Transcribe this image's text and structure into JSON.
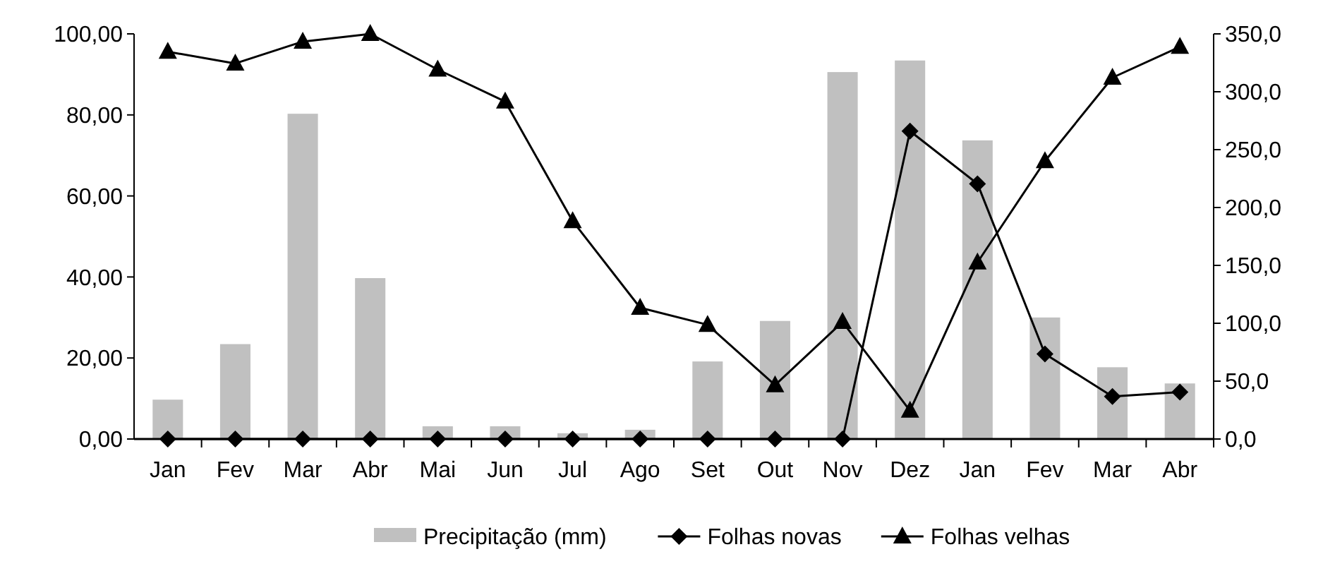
{
  "chart_data": {
    "type": "bar",
    "categories": [
      "Jan",
      "Fev",
      "Mar",
      "Abr",
      "Mai",
      "Jun",
      "Jul",
      "Ago",
      "Set",
      "Out",
      "Nov",
      "Dez",
      "Jan",
      "Fev",
      "Mar",
      "Abr"
    ],
    "series": [
      {
        "name": "Precipitação (mm)",
        "axis": "y2",
        "color": "#c0c0c0",
        "values": [
          34,
          82,
          281,
          139,
          11,
          11,
          5,
          8,
          67,
          102,
          317,
          327,
          258,
          105,
          62,
          48
        ]
      },
      {
        "name": "Folhas novas",
        "type": "line",
        "color": "#000000",
        "marker": "diamond",
        "values": [
          0,
          0,
          0,
          0,
          0,
          0,
          0,
          0,
          0,
          0,
          0,
          76,
          63,
          21,
          10.5,
          11.6
        ]
      },
      {
        "name": "Folhas velhas",
        "type": "line",
        "color": "#000000",
        "marker": "triangle",
        "values": [
          95.6,
          92.7,
          98.1,
          100,
          91.2,
          83.3,
          53.8,
          32.4,
          28.2,
          13.3,
          28.9,
          7,
          43.6,
          68.6,
          89.2,
          96.8
        ]
      }
    ],
    "ylim": [
      0,
      100
    ],
    "yticks": [
      {
        "value": 0,
        "label": "0,00"
      },
      {
        "value": 20,
        "label": "20,00"
      },
      {
        "value": 40,
        "label": "40,00"
      },
      {
        "value": 60,
        "label": "60,00"
      },
      {
        "value": 80,
        "label": "80,00"
      },
      {
        "value": 100,
        "label": "100,00"
      }
    ],
    "y2lim": [
      0,
      350
    ],
    "y2ticks": [
      {
        "value": 0,
        "label": "0,0"
      },
      {
        "value": 50,
        "label": "50,0"
      },
      {
        "value": 100,
        "label": "100,0"
      },
      {
        "value": 150,
        "label": "150,0"
      },
      {
        "value": 200,
        "label": "200,0"
      },
      {
        "value": 250,
        "label": "250,0"
      },
      {
        "value": 300,
        "label": "300,0"
      },
      {
        "value": 350,
        "label": "350,0"
      }
    ],
    "grid": false,
    "legend": "bottom"
  }
}
